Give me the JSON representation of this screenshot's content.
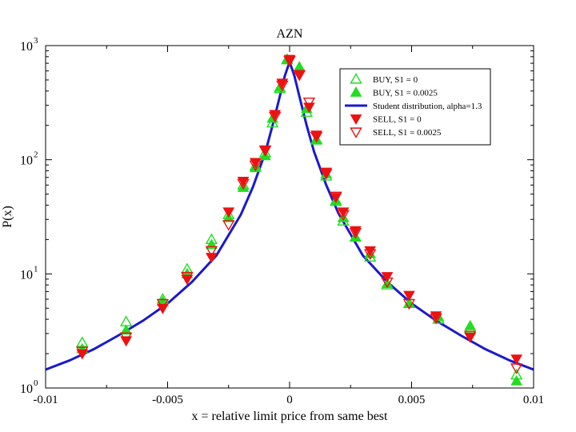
{
  "chart_data": {
    "type": "scatter",
    "title": "AZN",
    "xlabel": "x = relative limit price from same best",
    "ylabel": "P(x)",
    "xlim": [
      -0.01,
      0.01
    ],
    "ylim_log10": [
      0,
      3
    ],
    "yscale": "log",
    "xticks": [
      {
        "value": -0.01,
        "label": "-0.01"
      },
      {
        "value": -0.005,
        "label": "-0.005"
      },
      {
        "value": 0,
        "label": "0"
      },
      {
        "value": 0.005,
        "label": "0.005"
      },
      {
        "value": 0.01,
        "label": "0.01"
      }
    ],
    "yticks": [
      {
        "value": 1,
        "base": "10",
        "exp": "0"
      },
      {
        "value": 10,
        "base": "10",
        "exp": "1"
      },
      {
        "value": 100,
        "base": "10",
        "exp": "2"
      },
      {
        "value": 1000,
        "base": "10",
        "exp": "3"
      }
    ],
    "legend_position": "top-right",
    "series": [
      {
        "name": "BUY, S1 = 0",
        "marker": "triangle-up-open",
        "color": "#22dd22",
        "x": [
          -0.0085,
          -0.0067,
          -0.0052,
          -0.0042,
          -0.0032,
          -0.0025,
          -0.0019,
          -0.0014,
          -0.001,
          -0.0007,
          -0.0004,
          -0.0001,
          0.0004,
          0.0007,
          0.0011,
          0.0015,
          0.0019,
          0.0022,
          0.0027,
          0.0033,
          0.004,
          0.0049,
          0.0061,
          0.0074,
          0.0093
        ],
        "y": [
          2.5,
          3.8,
          6.0,
          11.0,
          20.0,
          33.0,
          60.0,
          88.0,
          115.0,
          210.0,
          420.0,
          750.0,
          640.0,
          260.0,
          150.0,
          72.0,
          43.0,
          29.0,
          21.0,
          14.0,
          8.0,
          5.5,
          4.0,
          3.3,
          1.3
        ]
      },
      {
        "name": "BUY, S1 = 0.0025",
        "marker": "triangle-up-filled",
        "color": "#22dd22",
        "x": [
          -0.0085,
          -0.0067,
          -0.0052,
          -0.0042,
          -0.0032,
          -0.0025,
          -0.0019,
          -0.0014,
          -0.001,
          -0.0007,
          -0.0004,
          -0.0001,
          0.0004,
          0.0007,
          0.0011,
          0.0015,
          0.0019,
          0.0022,
          0.0027,
          0.0033,
          0.004,
          0.0049,
          0.0061,
          0.0074,
          0.0093
        ],
        "y": [
          2.2,
          3.2,
          5.7,
          10.0,
          18.0,
          31.0,
          57.0,
          85.0,
          108.0,
          230.0,
          430.0,
          760.0,
          650.0,
          280.0,
          148.0,
          75.0,
          44.0,
          31.0,
          21.0,
          15.0,
          8.2,
          5.5,
          4.2,
          3.5,
          1.15
        ]
      },
      {
        "name": "Student distribution, alpha=1.3",
        "marker": "line",
        "color": "#1a1acc",
        "x": [
          -0.01,
          -0.009,
          -0.008,
          -0.007,
          -0.006,
          -0.005,
          -0.004,
          -0.003,
          -0.002,
          -0.0015,
          -0.001,
          -0.0007,
          -0.0004,
          -0.0002,
          0.0,
          0.0002,
          0.0004,
          0.0007,
          0.001,
          0.0015,
          0.002,
          0.003,
          0.004,
          0.005,
          0.006,
          0.007,
          0.008,
          0.009,
          0.01
        ],
        "y": [
          1.45,
          1.75,
          2.2,
          2.9,
          3.9,
          5.5,
          8.5,
          14.5,
          33.0,
          58.0,
          115.0,
          200.0,
          360.0,
          540.0,
          720.0,
          540.0,
          360.0,
          200.0,
          118.0,
          60.0,
          34.0,
          14.5,
          8.5,
          5.5,
          3.9,
          2.9,
          2.2,
          1.75,
          1.45
        ]
      },
      {
        "name": "SELL, S1 = 0",
        "marker": "triangle-down-filled",
        "color": "#ee1111",
        "x": [
          -0.0085,
          -0.0067,
          -0.0052,
          -0.0042,
          -0.0032,
          -0.0025,
          -0.0019,
          -0.0014,
          -0.001,
          -0.0006,
          -0.0003,
          0.0,
          0.0004,
          0.0008,
          0.0011,
          0.0015,
          0.0019,
          0.0022,
          0.0027,
          0.0033,
          0.004,
          0.0049,
          0.006,
          0.0074,
          0.0093
        ],
        "y": [
          2.0,
          2.6,
          5.0,
          9.0,
          14.0,
          35.0,
          65.0,
          95.0,
          120.0,
          250.0,
          470.0,
          760.0,
          550.0,
          290.0,
          165.0,
          78.0,
          47.0,
          35.0,
          24.0,
          16.0,
          9.5,
          6.5,
          4.3,
          2.8,
          1.8
        ]
      },
      {
        "name": "SELL, S1 = 0.0025",
        "marker": "triangle-down-open",
        "color": "#ee1111",
        "x": [
          -0.0085,
          -0.0067,
          -0.0052,
          -0.0042,
          -0.0032,
          -0.0025,
          -0.0019,
          -0.0014,
          -0.001,
          -0.0006,
          -0.0003,
          0.0,
          0.0004,
          0.0008,
          0.0011,
          0.0015,
          0.0019,
          0.0022,
          0.0027,
          0.0033,
          0.004,
          0.0049,
          0.006,
          0.0074,
          0.0093
        ],
        "y": [
          2.1,
          2.8,
          5.5,
          9.5,
          16.0,
          27.0,
          62.0,
          90.0,
          122.0,
          240.0,
          450.0,
          740.0,
          560.0,
          320.0,
          160.0,
          76.0,
          48.0,
          33.0,
          23.0,
          15.0,
          8.5,
          5.5,
          4.1,
          2.9,
          1.5
        ]
      }
    ]
  }
}
